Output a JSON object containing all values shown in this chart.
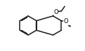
{
  "bg_color": "#ffffff",
  "line_color": "#1a1a1a",
  "line_width": 1.1,
  "figsize": [
    1.21,
    0.73
  ],
  "dpi": 100,
  "bcx": 0.26,
  "bcy": 0.5,
  "br": 0.16,
  "o_fontsize": 6.0
}
